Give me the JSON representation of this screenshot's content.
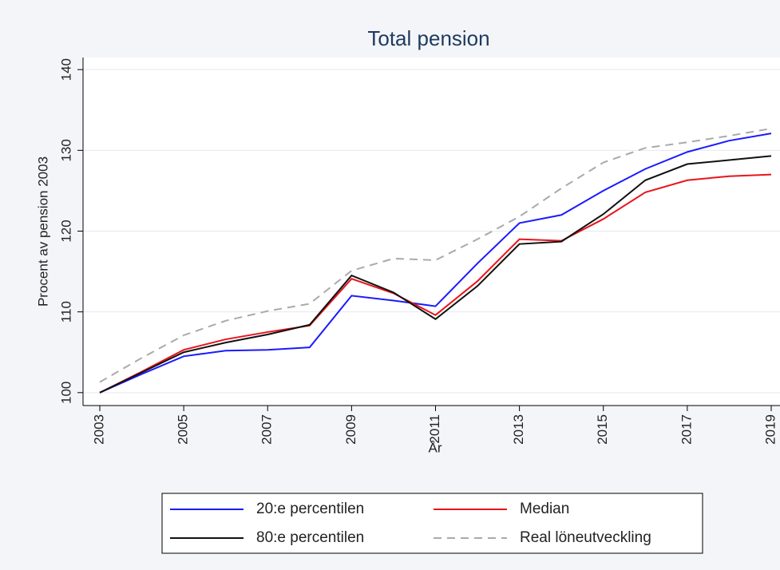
{
  "chart_data": {
    "type": "line",
    "title": "Total pension",
    "xlabel": "År",
    "ylabel": "Procent av pension 2003",
    "x": [
      2003,
      2004,
      2005,
      2006,
      2007,
      2008,
      2009,
      2010,
      2011,
      2012,
      2013,
      2014,
      2015,
      2016,
      2017,
      2018,
      2019
    ],
    "xlim": [
      2003,
      2019
    ],
    "xticks": [
      2003,
      2005,
      2007,
      2009,
      2011,
      2013,
      2015,
      2017,
      2019
    ],
    "ylim": [
      98.4,
      141.5
    ],
    "yticks": [
      100,
      110,
      120,
      130,
      140
    ],
    "grid": true,
    "series": [
      {
        "name": "20:e percentilen",
        "color": "#1a1aff",
        "linestyle": "solid",
        "values": [
          100,
          102.3,
          104.5,
          105.2,
          105.3,
          105.6,
          112,
          111.4,
          110.7,
          116,
          121,
          122,
          125,
          127.7,
          129.8,
          131.2,
          132.1
        ]
      },
      {
        "name": "Median",
        "color": "#e8141c",
        "linestyle": "solid",
        "values": [
          100,
          102.6,
          105.3,
          106.6,
          107.5,
          108.3,
          114.1,
          112.3,
          109.6,
          113.8,
          119,
          118.8,
          121.5,
          124.8,
          126.3,
          126.8,
          127
        ]
      },
      {
        "name": "80:e percentilen",
        "color": "#111111",
        "linestyle": "solid",
        "values": [
          100,
          102.5,
          105,
          106.2,
          107.2,
          108.4,
          114.5,
          112.4,
          109.1,
          113.2,
          118.4,
          118.7,
          122.1,
          126.3,
          128.3,
          128.8,
          129.3
        ]
      },
      {
        "name": "Real löneutveckling",
        "color": "#aaaaaa",
        "linestyle": "dashed",
        "values": [
          101.3,
          104.3,
          107.1,
          108.9,
          110.1,
          111,
          115.1,
          116.6,
          116.4,
          119,
          121.8,
          125.3,
          128.5,
          130.3,
          131,
          131.8,
          132.7
        ]
      }
    ]
  }
}
